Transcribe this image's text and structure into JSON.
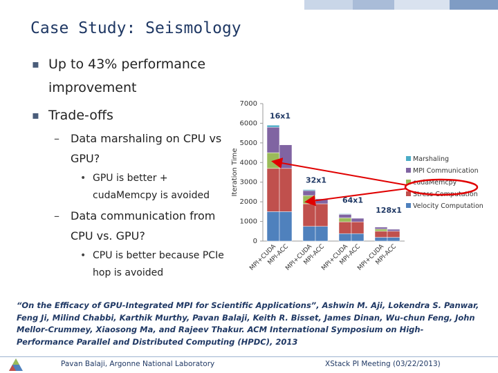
{
  "slide": {
    "title": "Case Study: Seismology",
    "bullets": {
      "b1": "Up to 43% performance improvement",
      "b2": "Trade-offs",
      "b2_1": "Data marshaling on CPU vs GPU?",
      "b2_1_1": "GPU is better + cudaMemcpy is avoided",
      "b2_2": "Data communication from CPU vs. GPU?",
      "b2_2_1": "CPU is better because PCIe hop is avoided"
    },
    "citation": "“On the Efficacy of GPU-Integrated MPI for Scientific Applications”, Ashwin M. Aji, Lokendra S. Panwar, Feng Ji, Milind Chabbi, Karthik Murthy, Pavan Balaji, Keith R. Bisset, James Dinan, Wu-chun Feng, John Mellor-Crummey, Xiaosong Ma, and Rajeev Thakur. ACM International Symposium on High-Performance Parallel and Distributed Computing (HPDC), 2013",
    "footer_left": "Pavan Balaji, Argonne National Laboratory",
    "footer_right": "XStack PI Meeting (03/22/2013)",
    "colors": {
      "title": "#1f3864",
      "marshaling": "#4bacc6",
      "mpi_communication": "#8064a2",
      "cudamemcpy": "#9bbb59",
      "stress": "#c0504d",
      "velocity": "#4f81bd",
      "arrow": "#e00000",
      "topbar": [
        "#c9d6e8",
        "#a9bcd8",
        "#d9e2ef",
        "#7f9cc4"
      ]
    }
  },
  "chart_data": {
    "type": "bar",
    "stacked": true,
    "ylabel": "Iteration Time",
    "ylim": [
      0,
      7000
    ],
    "yticks": [
      0,
      1000,
      2000,
      3000,
      4000,
      5000,
      6000,
      7000
    ],
    "categories": [
      "MPI+CUDA",
      "MPI-ACC",
      "MPI+CUDA",
      "MPI-ACC",
      "MPI+CUDA",
      "MPI-ACC",
      "MPI+CUDA",
      "MPI-ACC"
    ],
    "group_labels": [
      "16x1",
      "32x1",
      "64x1",
      "128x1"
    ],
    "series": [
      {
        "name": "Velocity Computation",
        "values": [
          1500,
          1500,
          750,
          750,
          380,
          380,
          190,
          190
        ]
      },
      {
        "name": "Stress Computation",
        "values": [
          2200,
          2200,
          1150,
          1150,
          600,
          600,
          310,
          310
        ]
      },
      {
        "name": "cudaMemcpy",
        "values": [
          800,
          0,
          420,
          0,
          200,
          0,
          110,
          0
        ]
      },
      {
        "name": "MPI Communication",
        "values": [
          1300,
          1200,
          250,
          250,
          180,
          180,
          100,
          100
        ]
      },
      {
        "name": "Marshaling",
        "values": [
          100,
          0,
          50,
          0,
          30,
          0,
          20,
          0
        ]
      }
    ],
    "legend_position": "right",
    "grid": false
  }
}
